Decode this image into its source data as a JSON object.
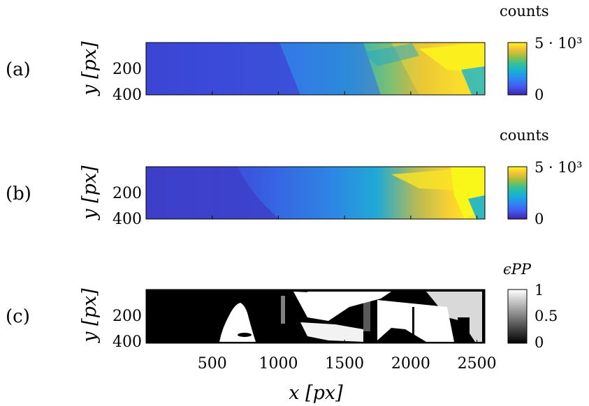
{
  "chart_data": {
    "type": "heatmap",
    "x_axis": {
      "label": "x [px]",
      "range": [
        0,
        2560
      ],
      "ticks": [
        500,
        1000,
        1500,
        2000,
        2500
      ],
      "tick_labels": [
        "500",
        "1000",
        "1500",
        "2000",
        "2500"
      ]
    },
    "panels": [
      {
        "letter": "(a)",
        "ylabel": "y [px]",
        "yrange": [
          0,
          400
        ],
        "yticks": [
          200,
          400
        ],
        "ytick_labels": [
          "200",
          "400"
        ],
        "colorbar": {
          "title": "counts",
          "colormap": "parula",
          "range": [
            0,
            5000
          ],
          "tick_labels": [
            "5 · 10³",
            "0"
          ]
        }
      },
      {
        "letter": "(b)",
        "ylabel": "y [px]",
        "yrange": [
          0,
          400
        ],
        "yticks": [
          200,
          400
        ],
        "ytick_labels": [
          "200",
          "400"
        ],
        "colorbar": {
          "title": "counts",
          "colormap": "parula",
          "range": [
            0,
            5000
          ],
          "tick_labels": [
            "5 · 10³",
            "0"
          ]
        }
      },
      {
        "letter": "(c)",
        "ylabel": "y [px]",
        "yrange": [
          0,
          400
        ],
        "yticks": [
          200,
          400
        ],
        "ytick_labels": [
          "200",
          "400"
        ],
        "colorbar": {
          "title": "ϵPP",
          "colormap": "gray",
          "range": [
            0,
            1
          ],
          "tick_labels": [
            "1",
            "0.5",
            "0"
          ]
        }
      }
    ]
  }
}
